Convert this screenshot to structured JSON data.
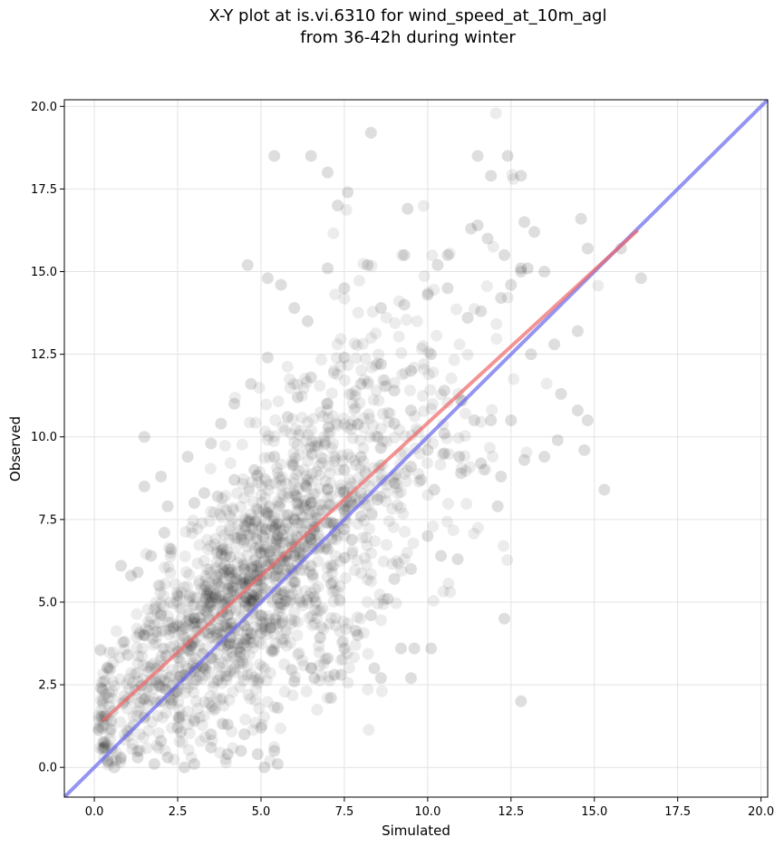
{
  "title_line1": "X-Y plot at is.vi.6310 for wind_speed_at_10m_agl",
  "title_line2": "from 36-42h during winter",
  "chart_data": {
    "type": "scatter",
    "title": "X-Y plot at is.vi.6310 for wind_speed_at_10m_agl\nfrom 36-42h during winter",
    "xlabel": "Simulated",
    "ylabel": "Observed",
    "xlim": [
      -0.9,
      20.2
    ],
    "ylim": [
      -0.9,
      20.2
    ],
    "xticks": [
      "0.0",
      "2.5",
      "5.0",
      "7.5",
      "10.0",
      "12.5",
      "15.0",
      "17.5",
      "20.0"
    ],
    "yticks": [
      "0.0",
      "2.5",
      "5.0",
      "7.5",
      "10.0",
      "12.5",
      "15.0",
      "17.5",
      "20.0"
    ],
    "grid": true,
    "point_color": "#000000",
    "point_count_estimate": 1800,
    "identity_line": {
      "color": "#6666ee",
      "x": [
        -0.9,
        20.2
      ],
      "y": [
        -0.9,
        20.2
      ]
    },
    "fit_line": {
      "color": "#ee6666",
      "x": [
        0.25,
        16.3
      ],
      "y": [
        1.4,
        16.25
      ]
    },
    "points": [
      [
        6.5,
        18.5
      ],
      [
        8.3,
        19.2
      ],
      [
        5.4,
        18.5
      ],
      [
        7.0,
        18.0
      ],
      [
        7.6,
        17.4
      ],
      [
        7.3,
        17.0
      ],
      [
        11.5,
        18.5
      ],
      [
        12.4,
        18.5
      ],
      [
        11.9,
        17.9
      ],
      [
        12.8,
        17.9
      ],
      [
        9.4,
        16.9
      ],
      [
        11.5,
        16.4
      ],
      [
        11.3,
        16.3
      ],
      [
        12.9,
        16.5
      ],
      [
        14.6,
        16.6
      ],
      [
        11.8,
        16.0
      ],
      [
        10.3,
        15.2
      ],
      [
        12.3,
        15.5
      ],
      [
        12.8,
        15.1
      ],
      [
        13.5,
        15.0
      ],
      [
        14.8,
        15.7
      ],
      [
        16.4,
        14.8
      ],
      [
        15.8,
        15.7
      ],
      [
        4.6,
        15.2
      ],
      [
        5.6,
        14.6
      ],
      [
        5.2,
        14.8
      ],
      [
        7.0,
        15.1
      ],
      [
        8.2,
        15.2
      ],
      [
        9.3,
        15.5
      ],
      [
        10.6,
        15.5
      ],
      [
        12.5,
        14.6
      ],
      [
        12.8,
        15.0
      ],
      [
        13.0,
        15.1
      ],
      [
        13.2,
        16.2
      ],
      [
        1.5,
        10.0
      ],
      [
        1.5,
        8.5
      ],
      [
        2.0,
        8.8
      ],
      [
        2.8,
        9.4
      ],
      [
        3.8,
        10.4
      ],
      [
        4.2,
        11.0
      ],
      [
        3.5,
        9.8
      ],
      [
        4.7,
        11.6
      ],
      [
        5.2,
        12.4
      ],
      [
        6.0,
        13.9
      ],
      [
        6.4,
        13.5
      ],
      [
        7.5,
        14.5
      ],
      [
        8.6,
        13.9
      ],
      [
        9.3,
        14.0
      ],
      [
        10.0,
        14.3
      ],
      [
        10.6,
        14.5
      ],
      [
        11.2,
        13.6
      ],
      [
        11.6,
        13.8
      ],
      [
        12.2,
        14.2
      ],
      [
        13.1,
        12.5
      ],
      [
        13.8,
        12.8
      ],
      [
        14.5,
        13.2
      ],
      [
        14.0,
        11.3
      ],
      [
        14.5,
        10.8
      ],
      [
        14.8,
        10.5
      ],
      [
        15.3,
        8.4
      ],
      [
        14.7,
        9.6
      ],
      [
        13.9,
        9.9
      ],
      [
        13.5,
        9.4
      ],
      [
        12.9,
        9.3
      ],
      [
        12.2,
        8.8
      ],
      [
        12.1,
        7.9
      ],
      [
        12.3,
        4.5
      ],
      [
        12.8,
        2.0
      ],
      [
        10.1,
        3.6
      ],
      [
        9.6,
        3.6
      ],
      [
        9.5,
        2.7
      ],
      [
        9.2,
        3.6
      ],
      [
        8.6,
        2.7
      ],
      [
        8.4,
        3.0
      ],
      [
        7.4,
        2.8
      ],
      [
        7.1,
        2.1
      ],
      [
        6.6,
        2.7
      ],
      [
        7.2,
        2.8
      ],
      [
        5.5,
        0.1
      ],
      [
        5.4,
        0.5
      ],
      [
        5.1,
        0.0
      ],
      [
        4.9,
        0.4
      ],
      [
        4.4,
        0.5
      ],
      [
        4.0,
        0.4
      ],
      [
        3.5,
        0.6
      ],
      [
        3.0,
        0.1
      ],
      [
        2.7,
        0.0
      ],
      [
        2.2,
        0.3
      ],
      [
        1.8,
        0.1
      ],
      [
        1.3,
        0.3
      ],
      [
        0.8,
        0.3
      ],
      [
        0.6,
        0.0
      ],
      [
        0.3,
        0.6
      ],
      [
        0.5,
        1.4
      ],
      [
        0.2,
        2.4
      ],
      [
        0.4,
        3.0
      ],
      [
        0.9,
        3.8
      ],
      [
        0.8,
        6.1
      ],
      [
        1.1,
        5.8
      ],
      [
        1.3,
        5.9
      ],
      [
        1.7,
        6.4
      ],
      [
        2.2,
        7.9
      ],
      [
        2.3,
        6.6
      ],
      [
        2.1,
        7.1
      ],
      [
        3.0,
        8.0
      ],
      [
        3.3,
        8.3
      ],
      [
        3.7,
        8.2
      ],
      [
        4.2,
        8.7
      ],
      [
        4.8,
        9.0
      ],
      [
        5.4,
        9.4
      ],
      [
        5.8,
        10.6
      ],
      [
        6.1,
        11.2
      ],
      [
        6.5,
        11.8
      ],
      [
        7.0,
        11.0
      ],
      [
        7.5,
        12.4
      ],
      [
        8.0,
        11.6
      ],
      [
        8.6,
        12.2
      ],
      [
        9.0,
        11.4
      ],
      [
        9.5,
        12.0
      ],
      [
        10.1,
        12.5
      ],
      [
        10.5,
        11.4
      ],
      [
        11.0,
        11.1
      ],
      [
        11.4,
        10.5
      ],
      [
        11.9,
        10.5
      ],
      [
        12.5,
        10.5
      ],
      [
        11.6,
        9.2
      ],
      [
        11.0,
        8.9
      ],
      [
        10.5,
        9.5
      ],
      [
        10.2,
        8.4
      ],
      [
        9.8,
        8.7
      ],
      [
        10.0,
        7.0
      ],
      [
        10.4,
        6.4
      ],
      [
        10.9,
        6.3
      ],
      [
        9.5,
        6.0
      ],
      [
        9.0,
        5.7
      ],
      [
        8.8,
        5.1
      ],
      [
        8.3,
        4.6
      ],
      [
        7.9,
        4.0
      ],
      [
        7.5,
        3.6
      ],
      [
        7.0,
        3.3
      ],
      [
        6.5,
        3.0
      ],
      [
        6.0,
        2.6
      ],
      [
        5.5,
        1.8
      ],
      [
        5.0,
        1.2
      ],
      [
        4.5,
        1.0
      ],
      [
        4.0,
        1.3
      ],
      [
        3.5,
        1.0
      ],
      [
        3.0,
        1.4
      ],
      [
        2.5,
        1.2
      ],
      [
        2.0,
        0.8
      ],
      [
        1.5,
        1.5
      ],
      [
        1.0,
        1.1
      ],
      [
        2.0,
        2.0
      ],
      [
        2.5,
        2.3
      ],
      [
        3.0,
        2.9
      ],
      [
        3.5,
        3.3
      ],
      [
        4.0,
        3.7
      ],
      [
        4.5,
        4.3
      ],
      [
        5.0,
        4.6
      ],
      [
        5.5,
        5.1
      ],
      [
        6.0,
        5.6
      ],
      [
        6.5,
        6.1
      ],
      [
        7.0,
        6.6
      ],
      [
        7.5,
        7.2
      ],
      [
        8.0,
        7.6
      ],
      [
        8.5,
        8.1
      ],
      [
        9.0,
        8.6
      ],
      [
        9.5,
        9.1
      ],
      [
        10.0,
        9.6
      ],
      [
        10.5,
        10.1
      ],
      [
        3.0,
        4.5
      ],
      [
        3.5,
        5.0
      ],
      [
        4.0,
        5.4
      ],
      [
        4.5,
        6.0
      ],
      [
        5.0,
        6.5
      ],
      [
        5.5,
        7.0
      ],
      [
        6.0,
        7.5
      ],
      [
        6.5,
        8.0
      ],
      [
        7.0,
        8.4
      ],
      [
        7.5,
        9.0
      ],
      [
        8.0,
        9.4
      ],
      [
        8.5,
        10.0
      ],
      [
        9.0,
        10.4
      ],
      [
        9.5,
        10.8
      ],
      [
        2.5,
        5.2
      ],
      [
        2.0,
        4.6
      ],
      [
        1.5,
        4.0
      ],
      [
        1.0,
        3.4
      ],
      [
        2.5,
        3.5
      ],
      [
        3.0,
        3.8
      ],
      [
        3.5,
        4.2
      ],
      [
        4.0,
        4.6
      ],
      [
        4.5,
        5.0
      ],
      [
        5.0,
        5.5
      ],
      [
        5.5,
        6.0
      ],
      [
        6.0,
        6.4
      ],
      [
        6.5,
        6.9
      ],
      [
        7.0,
        7.4
      ],
      [
        7.5,
        7.8
      ],
      [
        8.0,
        8.3
      ]
    ]
  }
}
